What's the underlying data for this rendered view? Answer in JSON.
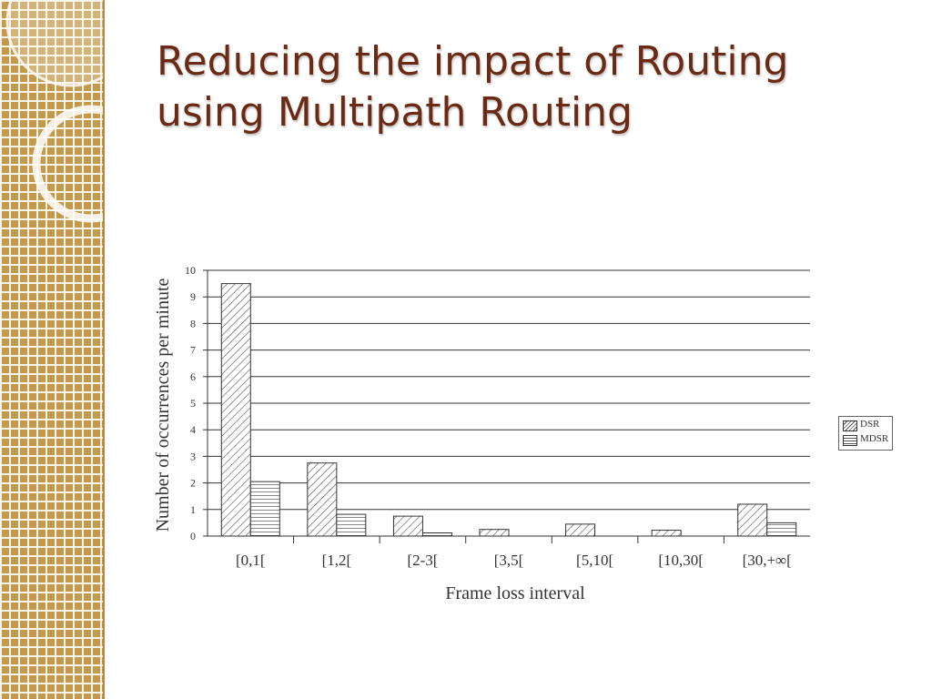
{
  "slide": {
    "title_line1": "Reducing the impact of Routing",
    "title_line2": "using Multipath Routing"
  },
  "chart_data": {
    "type": "bar",
    "categories": [
      "[0,1[",
      "[1,2[",
      "[2-3[",
      "[3,5[",
      "[5,10[",
      "[10,30[",
      "[30,+∞["
    ],
    "series": [
      {
        "name": "DSR",
        "values": [
          9.5,
          2.75,
          0.75,
          0.25,
          0.45,
          0.22,
          1.2
        ]
      },
      {
        "name": "MDSR",
        "values": [
          2.05,
          0.82,
          0.12,
          0,
          0,
          0,
          0.5
        ]
      }
    ],
    "xlabel": "Frame loss interval",
    "ylabel": "Number of occurrences per minute",
    "ylim": [
      0,
      10
    ],
    "yticks": [
      0,
      1,
      2,
      3,
      4,
      5,
      6,
      7,
      8,
      9,
      10
    ],
    "grid": true,
    "legend_position": "right"
  },
  "colors": {
    "title": "#6b2a14",
    "sidebar": "#c49a4a"
  }
}
